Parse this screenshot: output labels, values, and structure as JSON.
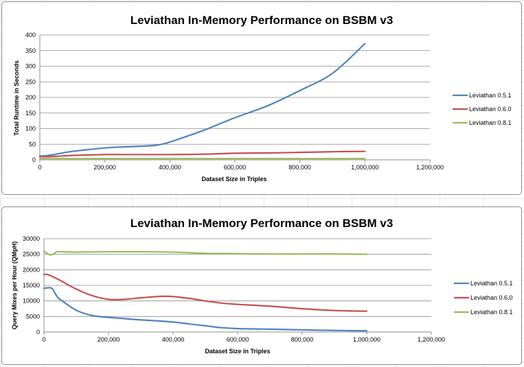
{
  "chart_data": [
    {
      "type": "line",
      "title": "Leviathan In-Memory Performance on BSBM v3",
      "xlabel": "Dataset Size in Triples",
      "ylabel": "Total Runtime in Seconds",
      "xlim": [
        0,
        1200000
      ],
      "ylim": [
        0,
        400
      ],
      "x_ticks": [
        0,
        200000,
        400000,
        600000,
        800000,
        1000000,
        1200000
      ],
      "x_tick_labels": [
        "0",
        "200,000",
        "400,000",
        "600,000",
        "800,000",
        "1,000,000",
        "1,200,000"
      ],
      "y_ticks": [
        0,
        50,
        100,
        150,
        200,
        250,
        300,
        350,
        400
      ],
      "y_tick_labels": [
        "0",
        "50",
        "100",
        "150",
        "200",
        "250",
        "300",
        "350",
        "400"
      ],
      "grid": true,
      "legend_position": "right",
      "series": [
        {
          "name": "Leviathan 0.5.1",
          "color": "#4f81bd",
          "x": [
            0,
            25000,
            50000,
            100000,
            200000,
            250000,
            300000,
            350000,
            375000,
            400000,
            500000,
            600000,
            700000,
            800000,
            900000,
            1000000
          ],
          "values": [
            12,
            14,
            18,
            27,
            38,
            41,
            43,
            46,
            50,
            57,
            93,
            135,
            173,
            222,
            277,
            372
          ]
        },
        {
          "name": "Leviathan 0.6.0",
          "color": "#c0504d",
          "x": [
            0,
            25000,
            50000,
            100000,
            200000,
            250000,
            300000,
            350000,
            375000,
            400000,
            500000,
            600000,
            700000,
            800000,
            900000,
            1000000
          ],
          "values": [
            10,
            10,
            11,
            14,
            17,
            17,
            17,
            17,
            17,
            17,
            18,
            21,
            22,
            24,
            26,
            27
          ]
        },
        {
          "name": "Leviathan 0.8.1",
          "color": "#9bbb59",
          "x": [
            0,
            25000,
            50000,
            100000,
            200000,
            250000,
            300000,
            350000,
            375000,
            400000,
            500000,
            600000,
            700000,
            800000,
            900000,
            1000000
          ],
          "values": [
            4,
            4,
            4,
            4,
            4,
            4,
            4,
            4,
            4,
            4,
            4,
            4,
            4,
            4,
            4,
            4
          ]
        }
      ]
    },
    {
      "type": "line",
      "title": "Leviathan In-Memory Performance on BSBM v3",
      "xlabel": "Dataset Size in Triples",
      "ylabel": "Query Mixes per Hour (QMpH)",
      "xlim": [
        0,
        1200000
      ],
      "ylim": [
        0,
        30000
      ],
      "x_ticks": [
        0,
        200000,
        400000,
        600000,
        800000,
        1000000,
        1200000
      ],
      "x_tick_labels": [
        "0",
        "200,000",
        "400,000",
        "600,000",
        "800,000",
        "1,000,000",
        "1,200,000"
      ],
      "y_ticks": [
        0,
        5000,
        10000,
        15000,
        20000,
        25000,
        30000
      ],
      "y_tick_labels": [
        "0",
        "5000",
        "10000",
        "15000",
        "20000",
        "25000",
        "30000"
      ],
      "grid": true,
      "legend_position": "right",
      "series": [
        {
          "name": "Leviathan 0.5.1",
          "color": "#4f81bd",
          "x": [
            0,
            10000,
            25000,
            40000,
            50000,
            100000,
            150000,
            200000,
            250000,
            300000,
            350000,
            400000,
            450000,
            500000,
            550000,
            600000,
            700000,
            800000,
            900000,
            1000000
          ],
          "values": [
            14000,
            14200,
            14000,
            11500,
            10500,
            7000,
            5300,
            4700,
            4300,
            3900,
            3600,
            3200,
            2600,
            2000,
            1400,
            1100,
            900,
            700,
            500,
            400
          ]
        },
        {
          "name": "Leviathan 0.6.0",
          "color": "#c0504d",
          "x": [
            0,
            10000,
            25000,
            50000,
            100000,
            150000,
            200000,
            250000,
            300000,
            350000,
            375000,
            400000,
            450000,
            500000,
            550000,
            600000,
            700000,
            800000,
            900000,
            1000000
          ],
          "values": [
            18500,
            18500,
            17900,
            16600,
            13800,
            11700,
            10500,
            10500,
            11000,
            11400,
            11500,
            11400,
            10800,
            10000,
            9300,
            8900,
            8300,
            7500,
            6900,
            6700
          ]
        },
        {
          "name": "Leviathan 0.8.1",
          "color": "#9bbb59",
          "x": [
            0,
            10000,
            20000,
            30000,
            40000,
            50000,
            100000,
            200000,
            300000,
            400000,
            500000,
            600000,
            700000,
            800000,
            900000,
            1000000
          ],
          "values": [
            26000,
            25300,
            24800,
            25100,
            25800,
            25800,
            25700,
            25800,
            25800,
            25700,
            25300,
            25200,
            25100,
            25100,
            25100,
            25000
          ]
        }
      ]
    }
  ]
}
